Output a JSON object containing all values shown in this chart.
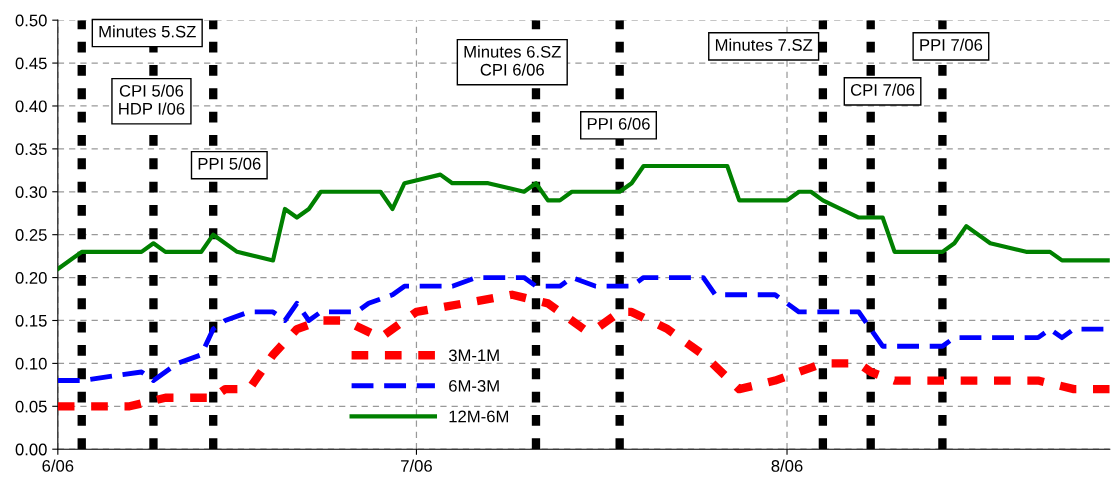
{
  "chart_data": {
    "type": "line",
    "xlim": [
      "2006-06-01",
      "2006-08-28"
    ],
    "xticks": [
      {
        "value": "2006-06-01",
        "label": "6/06"
      },
      {
        "value": "2006-07-01",
        "label": "7/06"
      },
      {
        "value": "2006-08-01",
        "label": "8/06"
      }
    ],
    "ylim": [
      0,
      0.5
    ],
    "yticks": [
      {
        "value": 0,
        "label": "0.00"
      },
      {
        "value": 0.05,
        "label": "0.05"
      },
      {
        "value": 0.1,
        "label": "0.10"
      },
      {
        "value": 0.15,
        "label": "0.15"
      },
      {
        "value": 0.2,
        "label": "0.20"
      },
      {
        "value": 0.25,
        "label": "0.25"
      },
      {
        "value": 0.3,
        "label": "0.30"
      },
      {
        "value": 0.35,
        "label": "0.35"
      },
      {
        "value": 0.4,
        "label": "0.40"
      },
      {
        "value": 0.45,
        "label": "0.45"
      },
      {
        "value": 0.5,
        "label": "0.50"
      }
    ],
    "grid": true,
    "legend": "bottom",
    "marker": "none",
    "series": [
      {
        "name": "3M-1M",
        "color": "#ff0000",
        "line_style": "dotted",
        "x": [
          "2006-06-01",
          "2006-06-07",
          "2006-06-10",
          "2006-06-14",
          "2006-06-15",
          "2006-06-17",
          "2006-06-19",
          "2006-06-21",
          "2006-06-23",
          "2006-06-25",
          "2006-06-28",
          "2006-07-01",
          "2006-07-05",
          "2006-07-09",
          "2006-07-12",
          "2006-07-13",
          "2006-07-15",
          "2006-07-16",
          "2006-07-18",
          "2006-07-19",
          "2006-07-22",
          "2006-07-25",
          "2006-07-28",
          "2006-07-31",
          "2006-08-04",
          "2006-08-07",
          "2006-08-08",
          "2006-08-10",
          "2006-08-22",
          "2006-08-25",
          "2006-08-28"
        ],
        "values": [
          0.05,
          0.05,
          0.06,
          0.06,
          0.07,
          0.07,
          0.11,
          0.14,
          0.15,
          0.15,
          0.13,
          0.16,
          0.17,
          0.18,
          0.17,
          0.16,
          0.14,
          0.14,
          0.16,
          0.16,
          0.14,
          0.11,
          0.07,
          0.08,
          0.1,
          0.1,
          0.09,
          0.08,
          0.08,
          0.07,
          0.07
        ]
      },
      {
        "name": "6M-3M",
        "color": "#0000ff",
        "line_style": "dashed",
        "x": [
          "2006-06-01",
          "2006-06-03",
          "2006-06-08",
          "2006-06-09",
          "2006-06-11",
          "2006-06-13",
          "2006-06-14",
          "2006-06-15",
          "2006-06-17",
          "2006-06-19",
          "2006-06-20",
          "2006-06-21",
          "2006-06-22",
          "2006-06-23",
          "2006-06-26",
          "2006-06-27",
          "2006-06-29",
          "2006-06-30",
          "2006-07-04",
          "2006-07-06",
          "2006-07-08",
          "2006-07-10",
          "2006-07-11",
          "2006-07-13",
          "2006-07-14",
          "2006-07-16",
          "2006-07-19",
          "2006-07-20",
          "2006-07-25",
          "2006-07-26",
          "2006-07-31",
          "2006-08-02",
          "2006-08-07",
          "2006-08-09",
          "2006-08-10",
          "2006-08-14",
          "2006-08-15",
          "2006-08-22",
          "2006-08-23",
          "2006-08-24",
          "2006-08-25",
          "2006-08-28"
        ],
        "values": [
          0.08,
          0.08,
          0.09,
          0.08,
          0.1,
          0.11,
          0.14,
          0.15,
          0.16,
          0.16,
          0.15,
          0.17,
          0.15,
          0.16,
          0.16,
          0.17,
          0.18,
          0.19,
          0.19,
          0.2,
          0.2,
          0.2,
          0.19,
          0.19,
          0.2,
          0.19,
          0.19,
          0.2,
          0.2,
          0.18,
          0.18,
          0.16,
          0.16,
          0.12,
          0.12,
          0.12,
          0.13,
          0.13,
          0.14,
          0.13,
          0.14,
          0.14
        ]
      },
      {
        "name": "12M-6M",
        "color": "#008000",
        "line_style": "solid",
        "x": [
          "2006-06-01",
          "2006-06-03",
          "2006-06-08",
          "2006-06-09",
          "2006-06-10",
          "2006-06-13",
          "2006-06-14",
          "2006-06-16",
          "2006-06-19",
          "2006-06-20",
          "2006-06-21",
          "2006-06-22",
          "2006-06-23",
          "2006-06-28",
          "2006-06-29",
          "2006-06-30",
          "2006-07-03",
          "2006-07-04",
          "2006-07-07",
          "2006-07-10",
          "2006-07-11",
          "2006-07-12",
          "2006-07-13",
          "2006-07-14",
          "2006-07-18",
          "2006-07-19",
          "2006-07-20",
          "2006-07-27",
          "2006-07-28",
          "2006-08-01",
          "2006-08-02",
          "2006-08-03",
          "2006-08-04",
          "2006-08-07",
          "2006-08-09",
          "2006-08-10",
          "2006-08-14",
          "2006-08-15",
          "2006-08-16",
          "2006-08-18",
          "2006-08-21",
          "2006-08-23",
          "2006-08-24",
          "2006-08-28"
        ],
        "values": [
          0.21,
          0.23,
          0.23,
          0.24,
          0.23,
          0.23,
          0.25,
          0.23,
          0.22,
          0.28,
          0.27,
          0.28,
          0.3,
          0.3,
          0.28,
          0.31,
          0.32,
          0.31,
          0.31,
          0.3,
          0.31,
          0.29,
          0.29,
          0.3,
          0.3,
          0.31,
          0.33,
          0.33,
          0.29,
          0.29,
          0.3,
          0.3,
          0.29,
          0.27,
          0.27,
          0.23,
          0.23,
          0.24,
          0.26,
          0.24,
          0.23,
          0.23,
          0.22,
          0.22
        ]
      }
    ],
    "ref_lines": [
      {
        "axis": "x",
        "value": "2006-06-03",
        "color": "#000000",
        "line_style": "dotted"
      },
      {
        "axis": "x",
        "value": "2006-06-09",
        "color": "#000000",
        "line_style": "dotted"
      },
      {
        "axis": "x",
        "value": "2006-06-14",
        "color": "#000000",
        "line_style": "dotted"
      },
      {
        "axis": "x",
        "value": "2006-07-11",
        "color": "#000000",
        "line_style": "dotted"
      },
      {
        "axis": "x",
        "value": "2006-07-18",
        "color": "#000000",
        "line_style": "dotted"
      },
      {
        "axis": "x",
        "value": "2006-08-04",
        "color": "#000000",
        "line_style": "dotted"
      },
      {
        "axis": "x",
        "value": "2006-08-08",
        "color": "#000000",
        "line_style": "dotted"
      },
      {
        "axis": "x",
        "value": "2006-08-14",
        "color": "#000000",
        "line_style": "dotted"
      }
    ],
    "annotations": [
      "Minutes 5.SZ",
      "CPI 5/06\nHDP I/06",
      "PPI 5/06",
      "Minutes 6.SZ\nCPI 6/06",
      "PPI 6/06",
      "Minutes 7.SZ",
      "CPI 7/06",
      "PPI 7/06"
    ]
  }
}
